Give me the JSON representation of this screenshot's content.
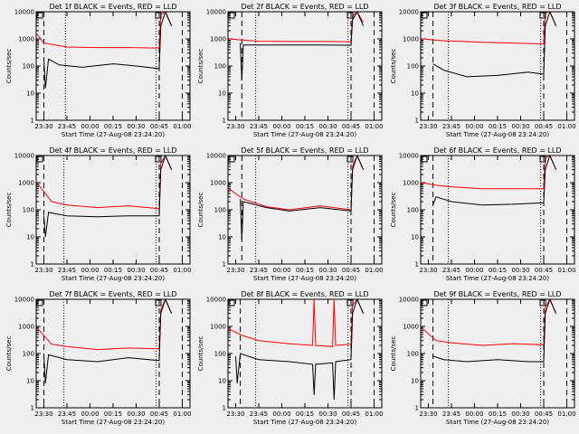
{
  "chart_data": [
    {
      "type": "line",
      "title": "Det 1f BLACK = Events, RED = LLD",
      "xlabel": "Start Time (27-Aug-08 23:24:20)",
      "ylabel": "Counts/sec",
      "yscale": "log",
      "ylim": [
        1,
        10000
      ],
      "x_ticks": [
        "23:30",
        "23:45",
        "00:00",
        "00:15",
        "00:30",
        "00:45",
        "01:00"
      ],
      "y_ticks": [
        "1",
        "10",
        "100",
        "1000",
        "10000"
      ],
      "series": [
        {
          "color": "#ff0000",
          "points": [
            [
              0.5,
              1500
            ],
            [
              5,
              700
            ],
            [
              20,
              500
            ],
            [
              40,
              480
            ],
            [
              60,
              480
            ],
            [
              80,
              460
            ],
            [
              81,
              8000
            ],
            [
              84,
              10000
            ],
            [
              88,
              3000
            ]
          ]
        },
        {
          "color": "#000000",
          "points": [
            [
              5,
              160
            ],
            [
              6,
              15
            ],
            [
              8,
              180
            ],
            [
              15,
              110
            ],
            [
              30,
              90
            ],
            [
              50,
              120
            ],
            [
              65,
              100
            ],
            [
              80,
              80
            ],
            [
              81,
              3000
            ],
            [
              84,
              10000
            ],
            [
              88,
              3000
            ]
          ]
        }
      ],
      "dashed_at": [
        5,
        80,
        95
      ],
      "dotted_at": [
        19,
        78
      ]
    },
    {
      "type": "line",
      "title": "Det 2f BLACK = Events, RED = LLD",
      "xlabel": "Start Time (27-Aug-08 23:24:20)",
      "ylabel": "Counts/sec",
      "yscale": "log",
      "ylim": [
        1,
        10000
      ],
      "x_ticks": [
        "23:30",
        "23:45",
        "00:00",
        "00:15",
        "00:30",
        "00:45",
        "01:00"
      ],
      "y_ticks": [
        "1",
        "10",
        "100",
        "1000",
        "10000"
      ],
      "series": [
        {
          "color": "#ff0000",
          "points": [
            [
              0.5,
              1000
            ],
            [
              20,
              820
            ],
            [
              40,
              800
            ],
            [
              60,
              800
            ],
            [
              80,
              780
            ],
            [
              81,
              7000
            ],
            [
              84,
              10000
            ],
            [
              88,
              4000
            ]
          ]
        },
        {
          "color": "#000000",
          "points": [
            [
              8,
              700
            ],
            [
              9,
              30
            ],
            [
              10,
              600
            ],
            [
              30,
              600
            ],
            [
              60,
              600
            ],
            [
              80,
              580
            ],
            [
              81,
              5000
            ],
            [
              84,
              10000
            ],
            [
              88,
              3000
            ]
          ]
        }
      ],
      "dashed_at": [
        9,
        80,
        95
      ],
      "dotted_at": [
        18,
        78
      ]
    },
    {
      "type": "line",
      "title": "Det 3f BLACK = Events, RED = LLD",
      "xlabel": "Start Time (27-Aug-08 23:24:20)",
      "ylabel": "Counts/sec",
      "yscale": "log",
      "ylim": [
        1,
        10000
      ],
      "x_ticks": [
        "23:30",
        "23:45",
        "00:00",
        "00:15",
        "00:30",
        "00:45",
        "01:00"
      ],
      "y_ticks": [
        "1",
        "10",
        "100",
        "1000",
        "10000"
      ],
      "series": [
        {
          "color": "#ff0000",
          "points": [
            [
              0.5,
              1000
            ],
            [
              15,
              850
            ],
            [
              40,
              750
            ],
            [
              60,
              700
            ],
            [
              80,
              650
            ],
            [
              81,
              9000
            ],
            [
              84,
              10000
            ],
            [
              88,
              3000
            ]
          ]
        },
        {
          "color": "#000000",
          "points": [
            [
              8,
              120
            ],
            [
              15,
              70
            ],
            [
              30,
              40
            ],
            [
              50,
              45
            ],
            [
              70,
              60
            ],
            [
              80,
              50
            ],
            [
              81,
              3000
            ],
            [
              84,
              10000
            ],
            [
              88,
              3000
            ]
          ]
        }
      ],
      "dashed_at": [
        8,
        80,
        95
      ],
      "dotted_at": [
        18,
        78
      ]
    },
    {
      "type": "line",
      "title": "Det 4f BLACK = Events, RED = LLD",
      "xlabel": "Start Time (27-Aug-08 23:24:20)",
      "ylabel": "Counts/sec",
      "yscale": "log",
      "ylim": [
        1,
        10000
      ],
      "x_ticks": [
        "23:30",
        "23:45",
        "00:00",
        "00:15",
        "00:30",
        "00:45",
        "01:00"
      ],
      "y_ticks": [
        "1",
        "10",
        "100",
        "1000",
        "10000"
      ],
      "series": [
        {
          "color": "#ff0000",
          "points": [
            [
              0.5,
              1000
            ],
            [
              10,
              200
            ],
            [
              20,
              150
            ],
            [
              40,
              120
            ],
            [
              60,
              140
            ],
            [
              80,
              110
            ],
            [
              81,
              5000
            ],
            [
              84,
              10000
            ],
            [
              88,
              3000
            ]
          ]
        },
        {
          "color": "#000000",
          "points": [
            [
              5,
              60
            ],
            [
              6,
              10
            ],
            [
              8,
              80
            ],
            [
              20,
              60
            ],
            [
              40,
              55
            ],
            [
              60,
              60
            ],
            [
              80,
              60
            ],
            [
              81,
              3000
            ],
            [
              84,
              10000
            ],
            [
              88,
              3000
            ]
          ]
        }
      ],
      "dashed_at": [
        5,
        80,
        95
      ],
      "dotted_at": [
        18,
        78
      ]
    },
    {
      "type": "line",
      "title": "Det 5f BLACK = Events, RED = LLD",
      "xlabel": "Start Time (27-Aug-08 23:24:20)",
      "ylabel": "Counts/sec",
      "yscale": "log",
      "ylim": [
        1,
        10000
      ],
      "x_ticks": [
        "23:30",
        "23:45",
        "00:00",
        "00:15",
        "00:30",
        "00:45",
        "01:00"
      ],
      "y_ticks": [
        "1",
        "10",
        "100",
        "1000",
        "10000"
      ],
      "series": [
        {
          "color": "#ff0000",
          "points": [
            [
              0.5,
              600
            ],
            [
              10,
              250
            ],
            [
              25,
              130
            ],
            [
              40,
              100
            ],
            [
              60,
              140
            ],
            [
              80,
              100
            ],
            [
              81,
              4000
            ],
            [
              84,
              10000
            ],
            [
              88,
              3000
            ]
          ]
        },
        {
          "color": "#000000",
          "points": [
            [
              8,
              250
            ],
            [
              9,
              8
            ],
            [
              10,
              200
            ],
            [
              25,
              120
            ],
            [
              40,
              90
            ],
            [
              60,
              120
            ],
            [
              80,
              90
            ],
            [
              81,
              3000
            ],
            [
              84,
              10000
            ],
            [
              88,
              3000
            ]
          ]
        }
      ],
      "dashed_at": [
        9,
        80,
        95
      ],
      "dotted_at": [
        18,
        78
      ]
    },
    {
      "type": "line",
      "title": "Det 6f BLACK = Events, RED = LLD",
      "xlabel": "Start Time (27-Aug-08 23:24:20)",
      "ylabel": "Counts/sec",
      "yscale": "log",
      "ylim": [
        1,
        10000
      ],
      "x_ticks": [
        "23:30",
        "23:45",
        "00:00",
        "00:15",
        "00:30",
        "00:45",
        "01:00"
      ],
      "y_ticks": [
        "1",
        "10",
        "100",
        "1000",
        "10000"
      ],
      "series": [
        {
          "color": "#ff0000",
          "points": [
            [
              0.5,
              1000
            ],
            [
              10,
              800
            ],
            [
              20,
              700
            ],
            [
              40,
              600
            ],
            [
              60,
              600
            ],
            [
              80,
              600
            ],
            [
              81,
              8000
            ],
            [
              84,
              10000
            ],
            [
              88,
              3000
            ]
          ]
        },
        {
          "color": "#000000",
          "points": [
            [
              8,
              150
            ],
            [
              10,
              300
            ],
            [
              20,
              200
            ],
            [
              40,
              150
            ],
            [
              60,
              160
            ],
            [
              80,
              180
            ],
            [
              81,
              3000
            ],
            [
              84,
              10000
            ],
            [
              88,
              3000
            ]
          ]
        }
      ],
      "dashed_at": [
        8,
        80,
        95
      ],
      "dotted_at": [
        18,
        78
      ]
    },
    {
      "type": "line",
      "title": "Det 7f BLACK = Events, RED = LLD",
      "xlabel": "Start Time (27-Aug-08 23:24:20)",
      "ylabel": "Counts/sec",
      "yscale": "log",
      "ylim": [
        1,
        10000
      ],
      "x_ticks": [
        "23:30",
        "23:45",
        "00:00",
        "00:15",
        "00:30",
        "00:45",
        "01:00"
      ],
      "y_ticks": [
        "1",
        "10",
        "100",
        "1000",
        "10000"
      ],
      "series": [
        {
          "color": "#ff0000",
          "points": [
            [
              0.5,
              900
            ],
            [
              10,
              220
            ],
            [
              20,
              180
            ],
            [
              40,
              140
            ],
            [
              60,
              160
            ],
            [
              80,
              150
            ],
            [
              81,
              4000
            ],
            [
              84,
              10000
            ],
            [
              88,
              3000
            ]
          ]
        },
        {
          "color": "#000000",
          "points": [
            [
              5,
              80
            ],
            [
              6,
              8
            ],
            [
              8,
              90
            ],
            [
              20,
              60
            ],
            [
              40,
              50
            ],
            [
              60,
              70
            ],
            [
              80,
              55
            ],
            [
              81,
              3000
            ],
            [
              84,
              10000
            ],
            [
              88,
              3000
            ]
          ]
        }
      ],
      "dashed_at": [
        5,
        80,
        95
      ],
      "dotted_at": [
        18,
        78
      ]
    },
    {
      "type": "line",
      "title": "Det 8f BLACK = Events, RED = LLD",
      "xlabel": "Start Time (27-Aug-08 23:24:20)",
      "ylabel": "Counts/sec",
      "yscale": "log",
      "ylim": [
        1,
        10000
      ],
      "x_ticks": [
        "23:30",
        "23:45",
        "00:00",
        "00:15",
        "00:30",
        "00:45",
        "01:00"
      ],
      "y_ticks": [
        "1",
        "10",
        "100",
        "1000",
        "10000"
      ],
      "series": [
        {
          "color": "#ff0000",
          "points": [
            [
              0.5,
              800
            ],
            [
              10,
              450
            ],
            [
              20,
              300
            ],
            [
              40,
              230
            ],
            [
              55,
              200
            ],
            [
              56,
              10000
            ],
            [
              57,
              200
            ],
            [
              68,
              180
            ],
            [
              69,
              10000
            ],
            [
              70,
              200
            ],
            [
              80,
              220
            ],
            [
              81,
              6000
            ],
            [
              84,
              10000
            ],
            [
              88,
              3000
            ]
          ]
        },
        {
          "color": "#000000",
          "points": [
            [
              5,
              80
            ],
            [
              6,
              8
            ],
            [
              8,
              100
            ],
            [
              20,
              60
            ],
            [
              40,
              50
            ],
            [
              55,
              40
            ],
            [
              56,
              3
            ],
            [
              57,
              40
            ],
            [
              68,
              45
            ],
            [
              69,
              2
            ],
            [
              70,
              50
            ],
            [
              80,
              60
            ],
            [
              81,
              3000
            ],
            [
              84,
              10000
            ],
            [
              88,
              3000
            ]
          ]
        }
      ],
      "dashed_at": [
        8,
        80,
        95
      ],
      "dotted_at": [
        18,
        78
      ]
    },
    {
      "type": "line",
      "title": "Det 9f BLACK = Events, RED = LLD",
      "xlabel": "Start Time (27-Aug-08 23:24:20)",
      "ylabel": "Counts/sec",
      "yscale": "log",
      "ylim": [
        1,
        10000
      ],
      "x_ticks": [
        "23:30",
        "23:45",
        "00:00",
        "00:15",
        "00:30",
        "00:45",
        "01:00"
      ],
      "y_ticks": [
        "1",
        "10",
        "100",
        "1000",
        "10000"
      ],
      "series": [
        {
          "color": "#ff0000",
          "points": [
            [
              0.5,
              900
            ],
            [
              10,
              300
            ],
            [
              20,
              250
            ],
            [
              40,
              200
            ],
            [
              60,
              230
            ],
            [
              80,
              210
            ],
            [
              81,
              5000
            ],
            [
              84,
              10000
            ],
            [
              88,
              3000
            ]
          ]
        },
        {
          "color": "#000000",
          "points": [
            [
              8,
              80
            ],
            [
              15,
              60
            ],
            [
              30,
              50
            ],
            [
              50,
              60
            ],
            [
              70,
              50
            ],
            [
              80,
              50
            ],
            [
              81,
              3000
            ],
            [
              84,
              10000
            ],
            [
              88,
              3000
            ]
          ]
        }
      ],
      "dashed_at": [
        8,
        80,
        95
      ],
      "dotted_at": [
        18,
        78
      ]
    }
  ]
}
